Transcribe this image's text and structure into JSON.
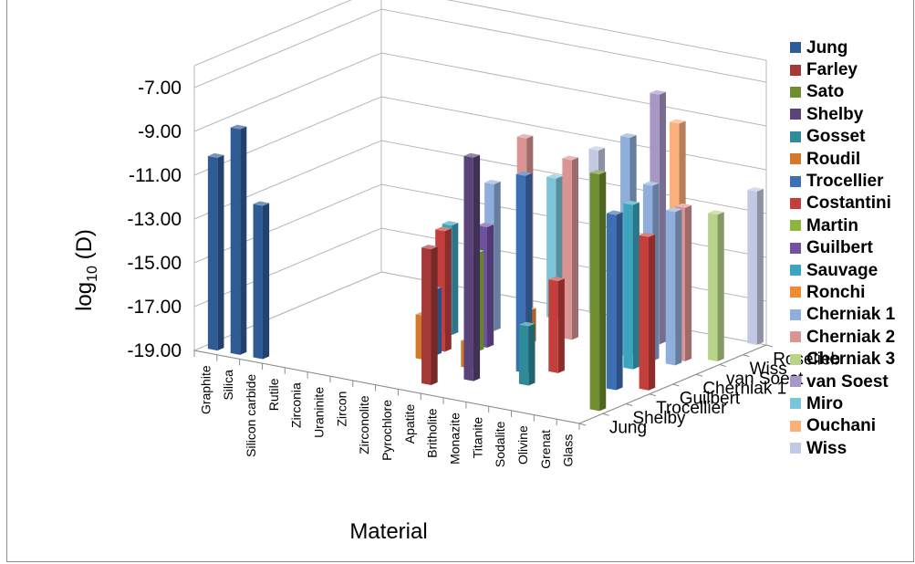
{
  "chart_data": {
    "type": "bar",
    "subtype": "3d-column",
    "title": "",
    "ylabel": "log10 (D)",
    "xlabel": "Material",
    "ylim": [
      -19,
      -7
    ],
    "yticks": [
      "-7.00",
      "-9.00",
      "-11.00",
      "-13.00",
      "-15.00",
      "-17.00",
      "-19.00"
    ],
    "categories": [
      "Graphite",
      "Silica",
      "Silicon carbide",
      "Rutile",
      "Zirconia",
      "Uraninite",
      "Zircon",
      "Zirconolite",
      "Pyrochlore",
      "Apatite",
      "Britholite",
      "Monazite",
      "Titanite",
      "Sodalite",
      "Olivine",
      "Grenat",
      "Glass"
    ],
    "depth_ticks": [
      "Jung",
      "Shelby",
      "Trocellier",
      "Guilbert",
      "Cherniak 1",
      "van Soest",
      "Wiss",
      "Roselieb"
    ],
    "legend_position": "right",
    "grid": true,
    "series": [
      {
        "name": "Jung",
        "color": "#2f5c97",
        "values": [
          -10.2,
          -8.7,
          -12.0,
          null,
          null,
          null,
          null,
          null,
          null,
          null,
          null,
          null,
          null,
          null,
          null,
          null,
          null
        ]
      },
      {
        "name": "Farley",
        "color": "#a33a37",
        "values": [
          null,
          null,
          null,
          null,
          null,
          null,
          null,
          null,
          null,
          -12.8,
          null,
          null,
          null,
          null,
          null,
          null,
          null
        ]
      },
      {
        "name": "Sato",
        "color": "#6e8e2f",
        "values": [
          null,
          null,
          null,
          null,
          null,
          null,
          null,
          null,
          null,
          null,
          null,
          null,
          null,
          null,
          null,
          null,
          -8.2
        ]
      },
      {
        "name": "Shelby",
        "color": "#5a4378",
        "values": [
          null,
          null,
          null,
          null,
          null,
          null,
          null,
          null,
          null,
          null,
          -8.8,
          null,
          null,
          null,
          null,
          null,
          null
        ]
      },
      {
        "name": "Gosset",
        "color": "#2f8a99",
        "values": [
          null,
          null,
          null,
          null,
          null,
          null,
          null,
          null,
          null,
          null,
          null,
          null,
          -16.3,
          null,
          null,
          null,
          null
        ]
      },
      {
        "name": "Roudil",
        "color": "#d2792b",
        "values": [
          null,
          null,
          null,
          null,
          null,
          null,
          null,
          -17.0,
          null,
          -17.8,
          null,
          null,
          null,
          null,
          null,
          null,
          null
        ]
      },
      {
        "name": "Trocellier",
        "color": "#3c6fb4",
        "values": [
          null,
          null,
          null,
          null,
          null,
          null,
          null,
          -16.0,
          null,
          null,
          null,
          -10.0,
          null,
          null,
          null,
          -11.0,
          null
        ]
      },
      {
        "name": "Costantini",
        "color": "#c43f3c",
        "values": [
          null,
          null,
          null,
          null,
          null,
          null,
          null,
          -13.5,
          null,
          null,
          null,
          null,
          -14.8,
          null,
          null,
          null,
          -12.0
        ]
      },
      {
        "name": "Martin",
        "color": "#8db63f",
        "values": [
          null,
          null,
          null,
          null,
          null,
          null,
          null,
          null,
          -14.5,
          null,
          null,
          null,
          null,
          null,
          null,
          null,
          null
        ]
      },
      {
        "name": "Guilbert",
        "color": "#7050a0",
        "values": [
          null,
          null,
          null,
          null,
          null,
          null,
          null,
          null,
          -13.5,
          null,
          null,
          null,
          null,
          null,
          null,
          null,
          null
        ]
      },
      {
        "name": "Sauvage",
        "color": "#3ca5bd",
        "values": [
          null,
          null,
          null,
          null,
          null,
          null,
          -14.0,
          null,
          null,
          null,
          null,
          null,
          null,
          null,
          -11.5,
          null,
          null
        ]
      },
      {
        "name": "Ronchi",
        "color": "#f08c35",
        "values": [
          null,
          null,
          null,
          null,
          null,
          null,
          null,
          null,
          null,
          -17.5,
          null,
          null,
          null,
          null,
          null,
          null,
          null
        ]
      },
      {
        "name": "Cherniak 1",
        "color": "#8faedc",
        "values": [
          null,
          null,
          null,
          null,
          null,
          null,
          null,
          -12.3,
          null,
          null,
          null,
          null,
          null,
          -9.0,
          -11.0,
          -12.0,
          null
        ]
      },
      {
        "name": "Cherniak 2",
        "color": "#da9493",
        "values": [
          null,
          null,
          null,
          null,
          null,
          null,
          null,
          null,
          -10.2,
          null,
          -10.8,
          null,
          null,
          null,
          null,
          -12.0,
          null
        ]
      },
      {
        "name": "Cherniak 3",
        "color": "#b8d48b",
        "values": [
          null,
          null,
          null,
          null,
          null,
          null,
          null,
          null,
          null,
          null,
          null,
          null,
          null,
          null,
          null,
          null,
          -12.3
        ]
      },
      {
        "name": "van Soest",
        "color": "#a796c6",
        "values": [
          null,
          null,
          null,
          null,
          null,
          null,
          null,
          null,
          null,
          null,
          null,
          null,
          null,
          -7.6,
          null,
          null,
          null
        ]
      },
      {
        "name": "Miro",
        "color": "#7cc4d7",
        "values": [
          null,
          null,
          null,
          null,
          null,
          null,
          null,
          null,
          -12.6,
          null,
          null,
          null,
          null,
          null,
          null,
          null,
          null
        ]
      },
      {
        "name": "Ouchani",
        "color": "#fbb07b",
        "values": [
          null,
          null,
          null,
          null,
          null,
          null,
          null,
          null,
          null,
          null,
          null,
          null,
          null,
          -9.3,
          null,
          null,
          null
        ]
      },
      {
        "name": "Wiss",
        "color": "#c3c9e2",
        "values": [
          null,
          null,
          null,
          null,
          null,
          null,
          null,
          null,
          null,
          -11.5,
          null,
          null,
          null,
          null,
          null,
          null,
          -12.0
        ]
      }
    ]
  }
}
